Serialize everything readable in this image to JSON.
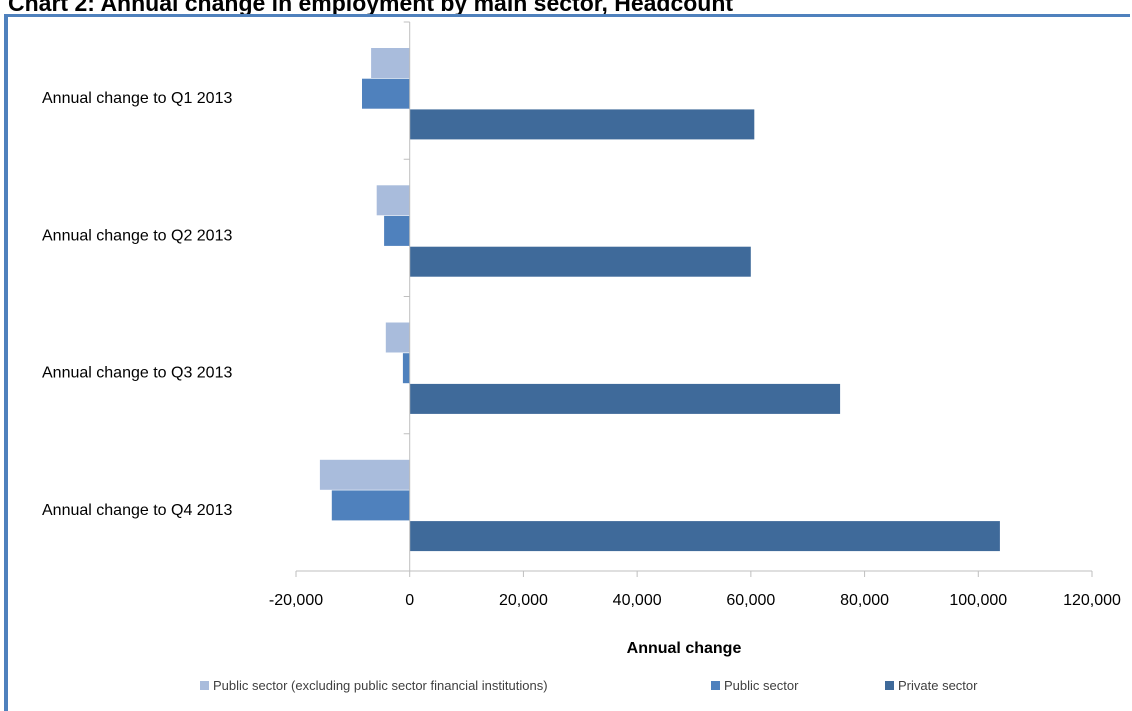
{
  "title": "Chart 2: Annual change in employment by main sector, Headcount",
  "colors": {
    "frame": "#4f81bd",
    "axis": "#bfbfbf"
  },
  "chart_data": {
    "type": "bar",
    "orientation": "horizontal",
    "title": "Chart 2: Annual change in employment by main sector, Headcount",
    "xlabel": "Annual change",
    "ylabel": "",
    "xlim": [
      -20000,
      120000
    ],
    "xticks": [
      -20000,
      0,
      20000,
      40000,
      60000,
      80000,
      100000,
      120000
    ],
    "xtick_labels": [
      "-20,000",
      "0",
      "20,000",
      "40,000",
      "60,000",
      "80,000",
      "100,000",
      "120,000"
    ],
    "grid": false,
    "legend_position": "bottom",
    "categories": [
      "Annual change to Q1 2013",
      "Annual change to Q2 2013",
      "Annual change to Q3 2013",
      "Annual change to Q4 2013"
    ],
    "series": [
      {
        "name": "Public sector (excluding public sector financial institutions)",
        "color": "#a9bcdc",
        "values": [
          -6800,
          -5800,
          -4200,
          -15800
        ]
      },
      {
        "name": "Public sector",
        "color": "#4f81bd",
        "values": [
          -8400,
          -4500,
          -1200,
          -13700
        ]
      },
      {
        "name": "Private sector",
        "color": "#3f6a9a",
        "values": [
          60600,
          60000,
          75700,
          103800
        ]
      }
    ]
  }
}
